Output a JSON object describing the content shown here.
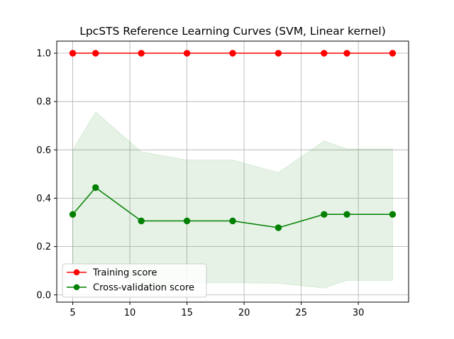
{
  "chart_data": {
    "type": "line",
    "title": "LpcSTS Reference Learning Curves (SVM, Linear kernel)",
    "xlabel": "",
    "ylabel": "",
    "xlim": [
      3.6,
      34.4
    ],
    "ylim": [
      -0.03,
      1.05
    ],
    "xticks": [
      5,
      10,
      15,
      20,
      25,
      30
    ],
    "yticks": [
      0.0,
      0.2,
      0.4,
      0.6,
      0.8,
      1.0
    ],
    "grid": true,
    "legend_position": "lower-left",
    "x": [
      5,
      7,
      11,
      15,
      19,
      23,
      27,
      29,
      33
    ],
    "series": [
      {
        "name": "Training score",
        "color": "#ff0000",
        "values": [
          1.0,
          1.0,
          1.0,
          1.0,
          1.0,
          1.0,
          1.0,
          1.0,
          1.0
        ],
        "band_lower": [
          1.0,
          1.0,
          1.0,
          1.0,
          1.0,
          1.0,
          1.0,
          1.0,
          1.0
        ],
        "band_upper": [
          1.0,
          1.0,
          1.0,
          1.0,
          1.0,
          1.0,
          1.0,
          1.0,
          1.0
        ]
      },
      {
        "name": "Cross-validation score",
        "color": "#008000",
        "values": [
          0.333,
          0.444,
          0.306,
          0.306,
          0.306,
          0.278,
          0.333,
          0.333,
          0.333
        ],
        "band_lower": [
          0.06,
          0.13,
          0.02,
          0.05,
          0.05,
          0.048,
          0.028,
          0.06,
          0.06
        ],
        "band_upper": [
          0.6,
          0.757,
          0.592,
          0.558,
          0.558,
          0.506,
          0.637,
          0.604,
          0.604
        ]
      }
    ]
  }
}
